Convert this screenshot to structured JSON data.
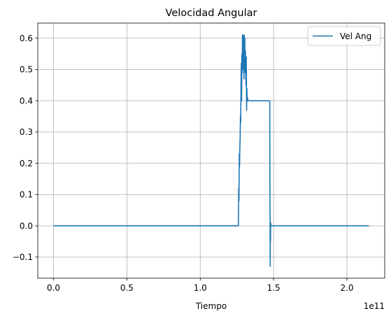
{
  "chart_data": {
    "type": "line",
    "title": "Velocidad Angular",
    "xlabel": "Tiempo",
    "ylabel": "",
    "x_offset_label": "1e11",
    "xlim": [
      -10750000000.0,
      225750000000.0
    ],
    "ylim": [
      -0.1674,
      0.6484
    ],
    "xticks": [
      0,
      50000000000.0,
      100000000000.0,
      150000000000.0,
      200000000000.0
    ],
    "xtick_labels": [
      "0.0",
      "0.5",
      "1.0",
      "1.5",
      "2.0"
    ],
    "yticks": [
      -0.1,
      0.0,
      0.1,
      0.2,
      0.3,
      0.4,
      0.5,
      0.6
    ],
    "ytick_labels": [
      "−0.1",
      "0.0",
      "0.1",
      "0.2",
      "0.3",
      "0.4",
      "0.5",
      "0.6"
    ],
    "grid": true,
    "legend": "top-right",
    "series": [
      {
        "name": "Vel Ang",
        "color": "#1f77b4",
        "x": [
          0,
          126000000000.0,
          126100000000.0,
          126200000000.0,
          126400000000.0,
          126600000000.0,
          126800000000.0,
          127000000000.0,
          127200000000.0,
          127400000000.0,
          127600000000.0,
          127800000000.0,
          128000000000.0,
          128200000000.0,
          128400000000.0,
          128600000000.0,
          128800000000.0,
          129000000000.0,
          129200000000.0,
          129400000000.0,
          129600000000.0,
          129800000000.0,
          130000000000.0,
          130200000000.0,
          130400000000.0,
          130600000000.0,
          130800000000.0,
          131000000000.0,
          131200000000.0,
          131400000000.0,
          131600000000.0,
          131800000000.0,
          132000000000.0,
          132200000000.0,
          132500000000.0,
          133000000000.0,
          135000000000.0,
          140000000000.0,
          145000000000.0,
          147000000000.0,
          147400000000.0,
          147500000000.0,
          147600000000.0,
          147700000000.0,
          147800000000.0,
          147900000000.0,
          148000000000.0,
          148200000000.0,
          149000000000.0,
          160000000000.0,
          180000000000.0,
          200000000000.0,
          215000000000.0
        ],
        "y": [
          0.0,
          0.0,
          0.05,
          0.12,
          0.08,
          0.23,
          0.19,
          0.25,
          0.28,
          0.35,
          0.33,
          0.46,
          0.52,
          0.4,
          0.55,
          0.49,
          0.61,
          0.58,
          0.61,
          0.5,
          0.6,
          0.47,
          0.61,
          0.55,
          0.6,
          0.49,
          0.56,
          0.52,
          0.45,
          0.54,
          0.37,
          0.44,
          0.4,
          0.41,
          0.4,
          0.4,
          0.4,
          0.4,
          0.4,
          0.4,
          0.4,
          0.13,
          0.02,
          -0.13,
          0.01,
          -0.05,
          0.01,
          0.0,
          0.0,
          0.0,
          0.0,
          0.0,
          0.0
        ]
      }
    ]
  }
}
